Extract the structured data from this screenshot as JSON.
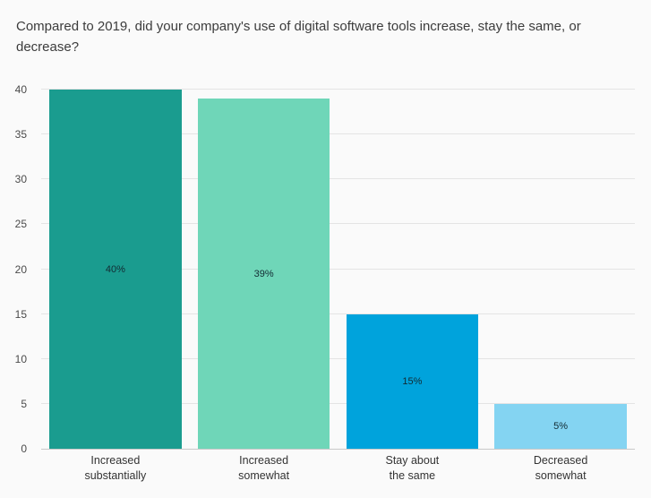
{
  "title": "Compared to 2019, did your company's use of digital software tools increase, stay the same, or decrease?",
  "chart_data": {
    "type": "bar",
    "title": "Compared to 2019, did your company's use of digital software tools increase, stay the same, or decrease?",
    "categories": [
      "Increased substantially",
      "Increased somewhat",
      "Stay about the same",
      "Decreased somewhat"
    ],
    "category_labels": [
      "Increased\nsubstantially",
      "Increased\nsomewhat",
      "Stay about\nthe same",
      "Decreased\nsomewhat"
    ],
    "values": [
      40,
      39,
      15,
      5
    ],
    "value_labels": [
      "40%",
      "39%",
      "15%",
      "5%"
    ],
    "bar_colors": [
      "#1a9c8f",
      "#6fd6b8",
      "#00a3dc",
      "#84d4f2"
    ],
    "yticks": [
      0,
      5,
      10,
      15,
      20,
      25,
      30,
      35,
      40
    ],
    "ylim": [
      0,
      40
    ],
    "xlabel": "",
    "ylabel": "",
    "grid": true,
    "legend": "none",
    "background_color": "#fafafa",
    "gridline_color": "#e4e4e4"
  }
}
